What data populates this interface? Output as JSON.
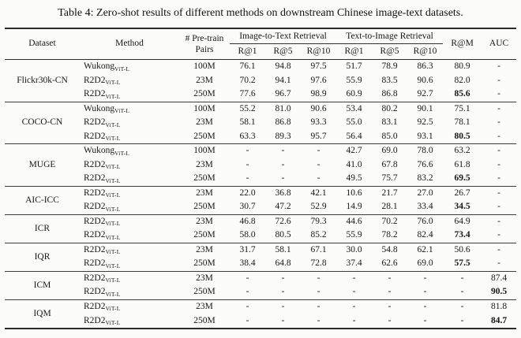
{
  "title": "Table 4: Zero-shot results of different methods on downstream Chinese image-text datasets.",
  "header": {
    "dataset": "Dataset",
    "method": "Method",
    "pretrain_line1": "# Pre-train",
    "pretrain_line2": "Pairs",
    "i2t_group": "Image-to-Text Retrieval",
    "t2i_group": "Text-to-Image Retrieval",
    "sub": [
      "R@1",
      "R@5",
      "R@10",
      "R@1",
      "R@5",
      "R@10"
    ],
    "rm": "R@M",
    "auc": "AUC"
  },
  "groups": [
    {
      "dataset": "Flickr30k-CN",
      "rows": [
        {
          "method": "Wukong",
          "method_sub": "ViT-L",
          "pairs": "100M",
          "values": [
            "76.1",
            "94.8",
            "97.5",
            "51.7",
            "78.9",
            "86.3",
            "80.9",
            "-"
          ],
          "bold": []
        },
        {
          "method": "R2D2",
          "method_sub": "ViT-L",
          "pairs": "23M",
          "values": [
            "70.2",
            "94.1",
            "97.6",
            "55.9",
            "83.5",
            "90.6",
            "82.0",
            "-"
          ],
          "bold": []
        },
        {
          "method": "R2D2",
          "method_sub": "ViT-L",
          "pairs": "250M",
          "values": [
            "77.6",
            "96.7",
            "98.9",
            "60.9",
            "86.8",
            "92.7",
            "85.6",
            "-"
          ],
          "bold": [
            6
          ]
        }
      ]
    },
    {
      "dataset": "COCO-CN",
      "rows": [
        {
          "method": "Wukong",
          "method_sub": "ViT-L",
          "pairs": "100M",
          "values": [
            "55.2",
            "81.0",
            "90.6",
            "53.4",
            "80.2",
            "90.1",
            "75.1",
            "-"
          ],
          "bold": []
        },
        {
          "method": "R2D2",
          "method_sub": "ViT-L",
          "pairs": "23M",
          "values": [
            "58.1",
            "86.8",
            "93.3",
            "55.0",
            "83.1",
            "92.5",
            "78.1",
            "-"
          ],
          "bold": []
        },
        {
          "method": "R2D2",
          "method_sub": "ViT-L",
          "pairs": "250M",
          "values": [
            "63.3",
            "89.3",
            "95.7",
            "56.4",
            "85.0",
            "93.1",
            "80.5",
            "-"
          ],
          "bold": [
            6
          ]
        }
      ]
    },
    {
      "dataset": "MUGE",
      "rows": [
        {
          "method": "Wukong",
          "method_sub": "ViT-L",
          "pairs": "100M",
          "values": [
            "-",
            "-",
            "-",
            "42.7",
            "69.0",
            "78.0",
            "63.2",
            "-"
          ],
          "bold": []
        },
        {
          "method": "R2D2",
          "method_sub": "ViT-L",
          "pairs": "23M",
          "values": [
            "-",
            "-",
            "-",
            "41.0",
            "67.8",
            "76.6",
            "61.8",
            "-"
          ],
          "bold": []
        },
        {
          "method": "R2D2",
          "method_sub": "ViT-L",
          "pairs": "250M",
          "values": [
            "-",
            "-",
            "-",
            "49.5",
            "75.7",
            "83.2",
            "69.5",
            "-"
          ],
          "bold": [
            6
          ]
        }
      ]
    },
    {
      "dataset": "AIC-ICC",
      "rows": [
        {
          "method": "R2D2",
          "method_sub": "ViT-L",
          "pairs": "23M",
          "values": [
            "22.0",
            "36.8",
            "42.1",
            "10.6",
            "21.7",
            "27.0",
            "26.7",
            "-"
          ],
          "bold": []
        },
        {
          "method": "R2D2",
          "method_sub": "ViT-L",
          "pairs": "250M",
          "values": [
            "30.7",
            "47.2",
            "52.9",
            "14.9",
            "28.1",
            "33.4",
            "34.5",
            "-"
          ],
          "bold": [
            6
          ]
        }
      ]
    },
    {
      "dataset": "ICR",
      "rows": [
        {
          "method": "R2D2",
          "method_sub": "ViT-L",
          "pairs": "23M",
          "values": [
            "46.8",
            "72.6",
            "79.3",
            "44.6",
            "70.2",
            "76.0",
            "64.9",
            "-"
          ],
          "bold": []
        },
        {
          "method": "R2D2",
          "method_sub": "ViT-L",
          "pairs": "250M",
          "values": [
            "58.0",
            "80.5",
            "85.2",
            "55.9",
            "78.2",
            "82.4",
            "73.4",
            "-"
          ],
          "bold": [
            6
          ]
        }
      ]
    },
    {
      "dataset": "IQR",
      "rows": [
        {
          "method": "R2D2",
          "method_sub": "ViT-L",
          "pairs": "23M",
          "values": [
            "31.7",
            "58.1",
            "67.1",
            "30.0",
            "54.8",
            "62.1",
            "50.6",
            "-"
          ],
          "bold": []
        },
        {
          "method": "R2D2",
          "method_sub": "ViT-L",
          "pairs": "250M",
          "values": [
            "38.4",
            "64.8",
            "72.8",
            "37.4",
            "62.6",
            "69.0",
            "57.5",
            "-"
          ],
          "bold": [
            6
          ]
        }
      ]
    },
    {
      "dataset": "ICM",
      "rows": [
        {
          "method": "R2D2",
          "method_sub": "ViT-L",
          "pairs": "23M",
          "values": [
            "-",
            "-",
            "-",
            "-",
            "-",
            "-",
            "-",
            "87.4"
          ],
          "bold": []
        },
        {
          "method": "R2D2",
          "method_sub": "ViT-L",
          "pairs": "250M",
          "values": [
            "-",
            "-",
            "-",
            "-",
            "-",
            "-",
            "-",
            "90.5"
          ],
          "bold": [
            7
          ]
        }
      ]
    },
    {
      "dataset": "IQM",
      "rows": [
        {
          "method": "R2D2",
          "method_sub": "ViT-L",
          "pairs": "23M",
          "values": [
            "-",
            "-",
            "-",
            "-",
            "-",
            "-",
            "-",
            "81.8"
          ],
          "bold": []
        },
        {
          "method": "R2D2",
          "method_sub": "ViT-L",
          "pairs": "250M",
          "values": [
            "-",
            "-",
            "-",
            "-",
            "-",
            "-",
            "-",
            "84.7"
          ],
          "bold": [
            7
          ]
        }
      ]
    }
  ]
}
